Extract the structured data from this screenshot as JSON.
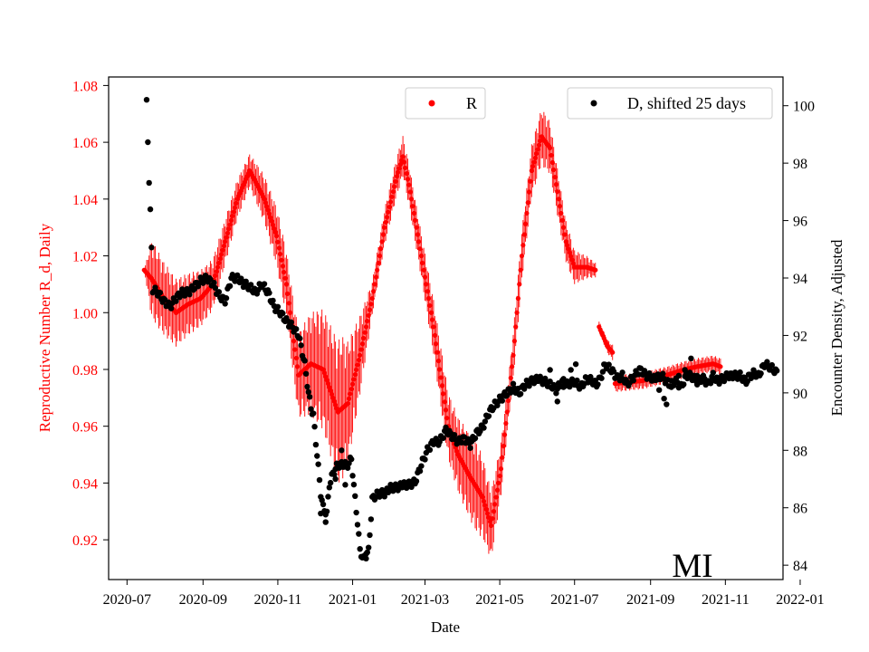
{
  "chart_data": {
    "type": "scatter",
    "xlabel": "Date",
    "ylabel_left": "Reproductive Number R_d, Daily",
    "ylabel_right": "Encounter Density, Adjusted",
    "state_label": "MI",
    "x_ticks": [
      "2020-07",
      "2020-09",
      "2020-11",
      "2021-01",
      "2021-03",
      "2021-05",
      "2021-07",
      "2021-09",
      "2021-11",
      "2022-01"
    ],
    "y_left_ticks": [
      "0.92",
      "0.94",
      "0.96",
      "0.98",
      "1.00",
      "1.02",
      "1.04",
      "1.06",
      "1.08"
    ],
    "y_right_ticks": [
      "84",
      "86",
      "88",
      "90",
      "92",
      "94",
      "96",
      "98",
      "100"
    ],
    "xlim_days": [
      -15,
      535
    ],
    "ylim_left": [
      0.906,
      1.083
    ],
    "ylim_right": [
      83.5,
      101.0
    ],
    "legend": {
      "r_label": "R",
      "d_label": "D, shifted 25 days"
    },
    "colors": {
      "r": "#ff0000",
      "d": "#000000",
      "axis": "#000000"
    },
    "x_unit": "days since 2020-07-01",
    "r_series": {
      "name": "R",
      "keypoints": [
        [
          14,
          1.015
        ],
        [
          20,
          1.012
        ],
        [
          30,
          1.005
        ],
        [
          40,
          1.0
        ],
        [
          50,
          1.003
        ],
        [
          60,
          1.005
        ],
        [
          70,
          1.01
        ],
        [
          80,
          1.025
        ],
        [
          90,
          1.04
        ],
        [
          100,
          1.05
        ],
        [
          105,
          1.046
        ],
        [
          112,
          1.04
        ],
        [
          122,
          1.027
        ],
        [
          130,
          1.01
        ],
        [
          136,
          0.99
        ],
        [
          140,
          0.978
        ],
        [
          145,
          0.98
        ],
        [
          150,
          0.982
        ],
        [
          160,
          0.98
        ],
        [
          168,
          0.97
        ],
        [
          172,
          0.965
        ],
        [
          180,
          0.968
        ],
        [
          190,
          0.985
        ],
        [
          200,
          1.005
        ],
        [
          210,
          1.03
        ],
        [
          220,
          1.048
        ],
        [
          225,
          1.055
        ],
        [
          230,
          1.045
        ],
        [
          240,
          1.02
        ],
        [
          250,
          0.995
        ],
        [
          255,
          0.98
        ],
        [
          262,
          0.96
        ],
        [
          270,
          0.95
        ],
        [
          280,
          0.942
        ],
        [
          290,
          0.935
        ],
        [
          297,
          0.925
        ],
        [
          305,
          0.945
        ],
        [
          315,
          0.985
        ],
        [
          322,
          1.02
        ],
        [
          330,
          1.05
        ],
        [
          338,
          1.062
        ],
        [
          345,
          1.058
        ],
        [
          352,
          1.04
        ],
        [
          358,
          1.025
        ],
        [
          365,
          1.016
        ],
        [
          375,
          1.016
        ],
        [
          382,
          1.015
        ]
      ],
      "late_segment": [
        [
          385,
          0.995
        ],
        [
          388,
          0.992
        ],
        [
          392,
          0.988
        ],
        [
          396,
          0.986
        ]
      ],
      "tail_segment": [
        [
          398,
          0.975
        ],
        [
          420,
          0.976
        ],
        [
          440,
          0.978
        ],
        [
          455,
          0.98
        ],
        [
          465,
          0.981
        ],
        [
          478,
          0.982
        ],
        [
          484,
          0.981
        ]
      ],
      "band_amplitude": [
        [
          14,
          0.0
        ],
        [
          20,
          0.014
        ],
        [
          60,
          0.01
        ],
        [
          100,
          0.006
        ],
        [
          130,
          0.012
        ],
        [
          175,
          0.026
        ],
        [
          200,
          0.006
        ],
        [
          240,
          0.008
        ],
        [
          285,
          0.016
        ],
        [
          310,
          0.008
        ],
        [
          340,
          0.01
        ],
        [
          360,
          0.007
        ],
        [
          385,
          0.002
        ],
        [
          400,
          0.003
        ],
        [
          484,
          0.003
        ]
      ]
    },
    "d_series": {
      "name": "D, shifted 25 days",
      "keypoints": [
        [
          16,
          100.1
        ],
        [
          17,
          98.8
        ],
        [
          18,
          97.4
        ],
        [
          19,
          96.3
        ],
        [
          20,
          95.0
        ],
        [
          21,
          93.6
        ],
        [
          25,
          93.5
        ],
        [
          30,
          93.2
        ],
        [
          35,
          93.0
        ],
        [
          40,
          93.3
        ],
        [
          45,
          93.5
        ],
        [
          50,
          93.5
        ],
        [
          55,
          93.7
        ],
        [
          60,
          93.9
        ],
        [
          65,
          94.0
        ],
        [
          70,
          93.8
        ],
        [
          75,
          93.4
        ],
        [
          80,
          93.2
        ],
        [
          85,
          94.0
        ],
        [
          90,
          94.0
        ],
        [
          95,
          93.8
        ],
        [
          100,
          93.7
        ],
        [
          105,
          93.5
        ],
        [
          110,
          93.8
        ],
        [
          115,
          93.5
        ],
        [
          120,
          93.0
        ],
        [
          125,
          92.8
        ],
        [
          130,
          92.5
        ],
        [
          135,
          92.3
        ],
        [
          140,
          92.0
        ],
        [
          145,
          91.0
        ],
        [
          148,
          90.0
        ],
        [
          150,
          89.5
        ],
        [
          152,
          89.2
        ],
        [
          158,
          86.5
        ],
        [
          160,
          86.0
        ],
        [
          163,
          85.8
        ],
        [
          165,
          86.8
        ],
        [
          168,
          87.2
        ],
        [
          172,
          87.5
        ],
        [
          176,
          87.5
        ],
        [
          180,
          87.5
        ],
        [
          183,
          87.7
        ],
        [
          186,
          86.3
        ],
        [
          188,
          85.5
        ],
        [
          190,
          84.5
        ],
        [
          193,
          84.2
        ],
        [
          197,
          84.5
        ],
        [
          200,
          86.3
        ],
        [
          205,
          86.5
        ],
        [
          210,
          86.5
        ],
        [
          215,
          86.7
        ],
        [
          220,
          86.7
        ],
        [
          225,
          86.8
        ],
        [
          230,
          86.8
        ],
        [
          235,
          86.9
        ],
        [
          240,
          87.5
        ],
        [
          245,
          88.0
        ],
        [
          250,
          88.3
        ],
        [
          255,
          88.3
        ],
        [
          260,
          88.7
        ],
        [
          265,
          88.5
        ],
        [
          270,
          88.3
        ],
        [
          275,
          88.4
        ],
        [
          280,
          88.2
        ],
        [
          285,
          88.6
        ],
        [
          290,
          88.8
        ],
        [
          295,
          89.3
        ],
        [
          300,
          89.6
        ],
        [
          305,
          89.8
        ],
        [
          310,
          90.0
        ],
        [
          315,
          90.2
        ],
        [
          320,
          90.0
        ],
        [
          325,
          90.3
        ],
        [
          330,
          90.4
        ],
        [
          335,
          90.5
        ],
        [
          340,
          90.4
        ],
        [
          345,
          90.3
        ],
        [
          350,
          90.1
        ],
        [
          355,
          90.4
        ],
        [
          360,
          90.3
        ],
        [
          365,
          90.4
        ],
        [
          370,
          90.2
        ],
        [
          375,
          90.5
        ],
        [
          380,
          90.4
        ],
        [
          383,
          90.3
        ],
        [
          386,
          90.5
        ],
        [
          390,
          91.0
        ],
        [
          395,
          90.8
        ],
        [
          400,
          90.5
        ],
        [
          404,
          90.6
        ],
        [
          408,
          90.3
        ],
        [
          412,
          90.5
        ],
        [
          418,
          90.8
        ],
        [
          424,
          90.6
        ],
        [
          430,
          90.5
        ],
        [
          436,
          90.6
        ],
        [
          442,
          90.3
        ],
        [
          448,
          90.4
        ],
        [
          452,
          90.2
        ],
        [
          456,
          90.6
        ],
        [
          460,
          90.6
        ],
        [
          465,
          90.4
        ],
        [
          470,
          90.5
        ],
        [
          474,
          90.3
        ],
        [
          478,
          90.6
        ],
        [
          482,
          90.4
        ],
        [
          486,
          90.5
        ],
        [
          490,
          90.6
        ],
        [
          495,
          90.6
        ],
        [
          500,
          90.6
        ],
        [
          505,
          90.4
        ],
        [
          508,
          90.6
        ],
        [
          512,
          90.7
        ],
        [
          515,
          90.6
        ],
        [
          520,
          91.0
        ],
        [
          525,
          90.9
        ],
        [
          530,
          90.7
        ]
      ],
      "late_segment": [
        [
          434,
          90.1
        ],
        [
          438,
          89.8
        ],
        [
          440,
          89.6
        ],
        [
          444,
          90.2
        ],
        [
          450,
          90.6
        ],
        [
          455,
          90.8
        ],
        [
          460,
          91.2
        ],
        [
          465,
          90.6
        ],
        [
          470,
          90.4
        ],
        [
          475,
          90.4
        ],
        [
          480,
          90.5
        ],
        [
          484,
          90.4
        ]
      ],
      "scatter_outliers": [
        [
          158,
          85.8
        ],
        [
          162,
          85.5
        ],
        [
          170,
          87.0
        ],
        [
          175,
          88.0
        ],
        [
          178,
          86.8
        ],
        [
          195,
          84.4
        ],
        [
          345,
          90.8
        ],
        [
          351,
          89.7
        ],
        [
          356,
          90.2
        ],
        [
          362,
          90.8
        ],
        [
          366,
          91.0
        ]
      ]
    }
  }
}
